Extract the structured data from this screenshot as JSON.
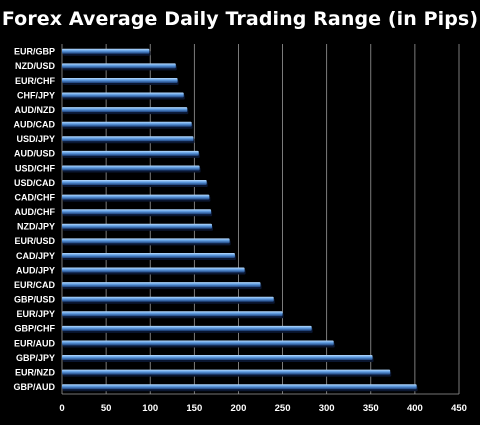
{
  "chart_data": {
    "type": "bar",
    "orientation": "horizontal",
    "title": "Forex Average Daily Trading Range (in Pips)",
    "xlabel": "",
    "ylabel": "",
    "xlim": [
      0,
      450
    ],
    "x_ticks": [
      0,
      50,
      100,
      150,
      200,
      250,
      300,
      350,
      400,
      450
    ],
    "grid": "vertical",
    "categories": [
      "EUR/GBP",
      "NZD/USD",
      "EUR/CHF",
      "CHF/JPY",
      "AUD/NZD",
      "AUD/CAD",
      "USD/JPY",
      "AUD/USD",
      "USD/CHF",
      "USD/CAD",
      "CAD/CHF",
      "AUD/CHF",
      "NZD/JPY",
      "EUR/USD",
      "CAD/JPY",
      "AUD/JPY",
      "EUR/CAD",
      "GBP/USD",
      "EUR/JPY",
      "GBP/CHF",
      "EUR/AUD",
      "GBP/JPY",
      "EUR/NZD",
      "GBP/AUD"
    ],
    "values": [
      99,
      129,
      131,
      138,
      142,
      147,
      149,
      155,
      156,
      164,
      167,
      169,
      170,
      190,
      196,
      207,
      225,
      240,
      250,
      283,
      308,
      352,
      372,
      402
    ],
    "colors": {
      "bar_light": "#b8dcff",
      "bar_mid": "#4f8fd8",
      "bar_dark": "#1c3f78",
      "grid": "#9a9a9a",
      "background": "#000000",
      "text": "#ffffff"
    }
  }
}
